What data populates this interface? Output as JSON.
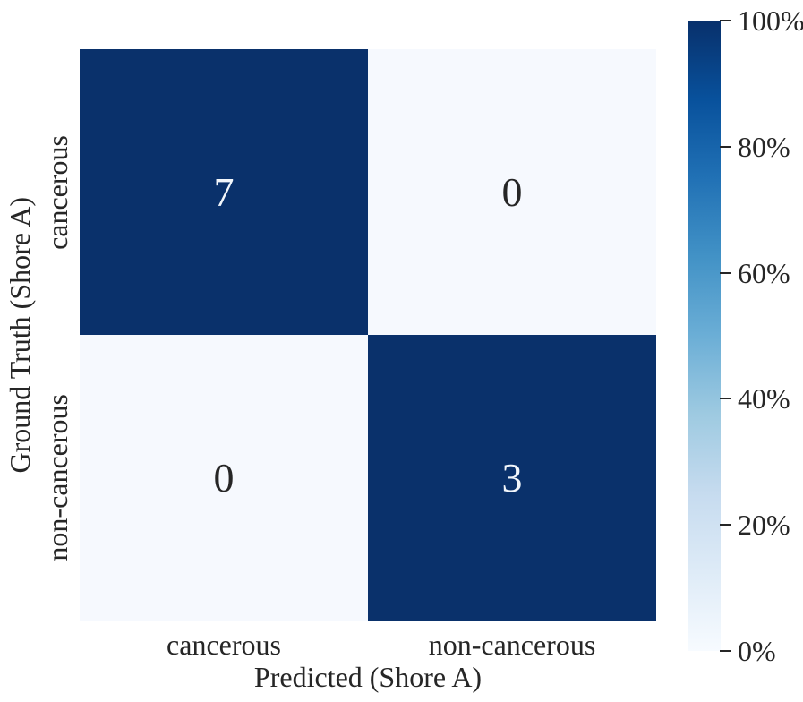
{
  "chart_data": {
    "type": "heatmap",
    "title": "",
    "xlabel": "Predicted (Shore A)",
    "ylabel": "Ground Truth (Shore A)",
    "x_categories": [
      "cancerous",
      "non-cancerous"
    ],
    "y_categories": [
      "cancerous",
      "non-cancerous"
    ],
    "values": [
      [
        7,
        0
      ],
      [
        0,
        3
      ]
    ],
    "cells": [
      {
        "row": 0,
        "col": 0,
        "value": "7",
        "pct": 100,
        "color": "#0a316b",
        "text_color": "#f2f6fb"
      },
      {
        "row": 0,
        "col": 1,
        "value": "0",
        "pct": 0,
        "color": "#f6f9fe",
        "text_color": "#262626"
      },
      {
        "row": 1,
        "col": 0,
        "value": "0",
        "pct": 0,
        "color": "#f6f9fe",
        "text_color": "#262626"
      },
      {
        "row": 1,
        "col": 1,
        "value": "3",
        "pct": 100,
        "color": "#0a316b",
        "text_color": "#f2f6fb"
      }
    ],
    "grid": false,
    "legend_position": "right-colorbar",
    "colorbar": {
      "unit": "%",
      "range": [
        0,
        100
      ],
      "ticks": [
        {
          "label": "100%",
          "pct": 100
        },
        {
          "label": "80%",
          "pct": 80
        },
        {
          "label": "60%",
          "pct": 60
        },
        {
          "label": "40%",
          "pct": 40
        },
        {
          "label": "20%",
          "pct": 20
        },
        {
          "label": "0%",
          "pct": 0
        }
      ],
      "colormap": "Blues",
      "gradient": [
        {
          "color": "#f7fbff",
          "at": "0%"
        },
        {
          "color": "#deebf7",
          "at": "12.5%"
        },
        {
          "color": "#c6dbef",
          "at": "25%"
        },
        {
          "color": "#9ecae1",
          "at": "37.5%"
        },
        {
          "color": "#6baed6",
          "at": "50%"
        },
        {
          "color": "#4292c6",
          "at": "62.5%"
        },
        {
          "color": "#2171b5",
          "at": "75%"
        },
        {
          "color": "#08519c",
          "at": "87.5%"
        },
        {
          "color": "#08306b",
          "at": "100%"
        }
      ]
    },
    "text_color": "#262626",
    "background_color": "#ffffff"
  }
}
